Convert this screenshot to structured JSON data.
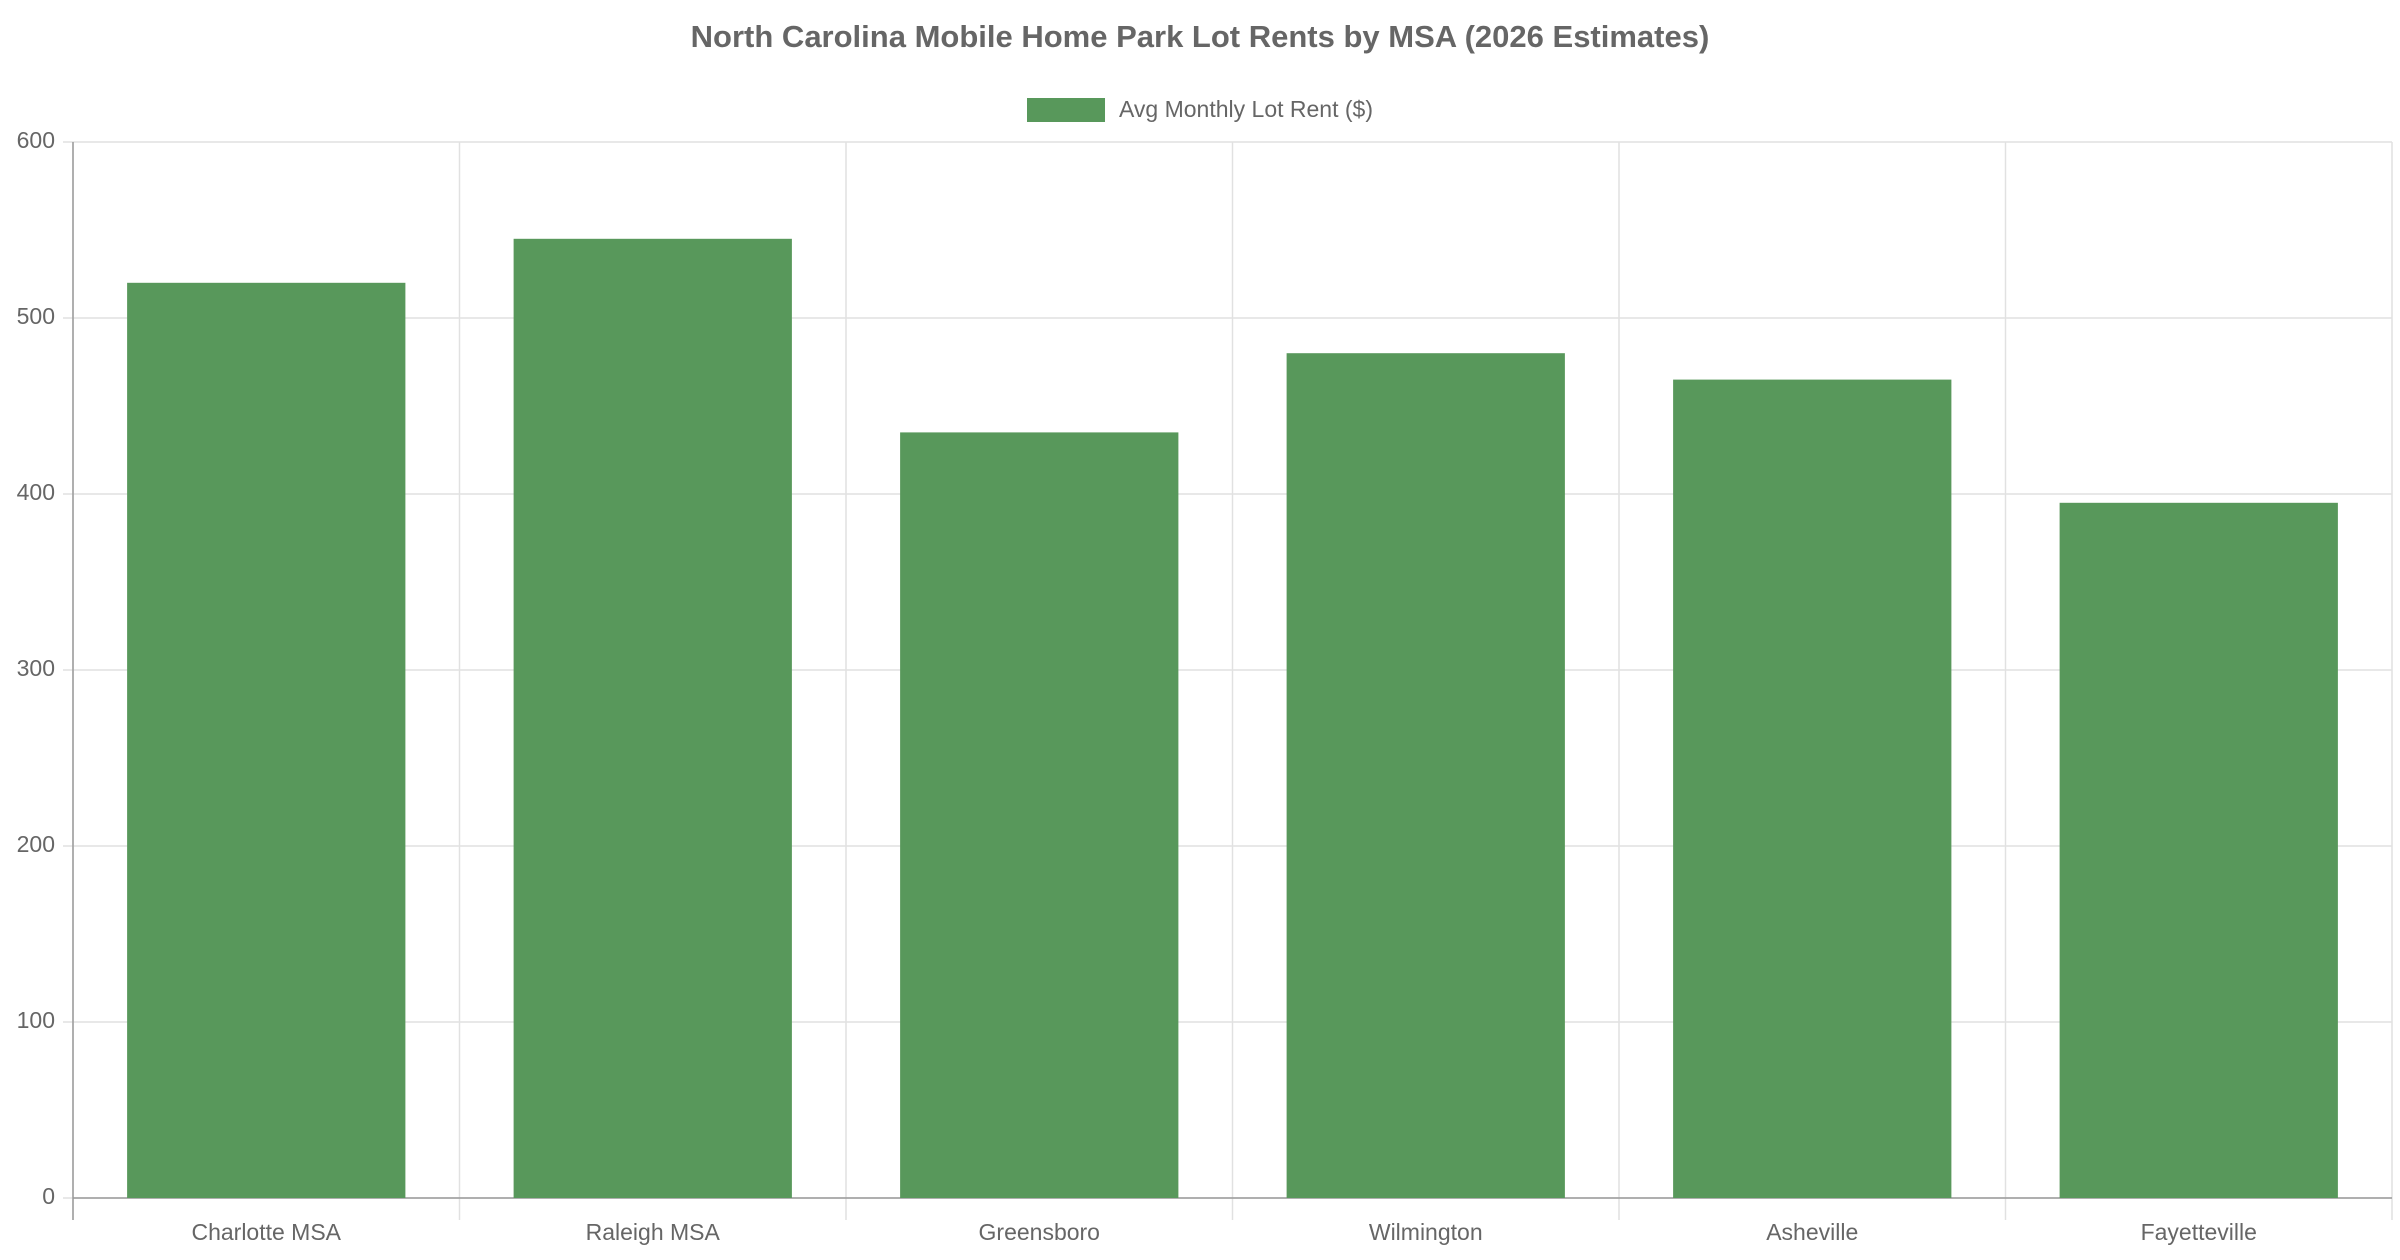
{
  "chart_data": {
    "type": "bar",
    "title": "North Carolina Mobile Home Park Lot Rents by MSA (2026 Estimates)",
    "categories": [
      "Charlotte MSA",
      "Raleigh MSA",
      "Greensboro",
      "Wilmington",
      "Asheville",
      "Fayetteville"
    ],
    "series": [
      {
        "name": "Avg Monthly Lot Rent ($)",
        "color": "#58985b",
        "values": [
          520,
          545,
          435,
          480,
          465,
          395
        ]
      }
    ],
    "ylim": [
      0,
      600
    ],
    "yticks": [
      0,
      100,
      200,
      300,
      400,
      500,
      600
    ],
    "grid": true,
    "legend": "top"
  }
}
